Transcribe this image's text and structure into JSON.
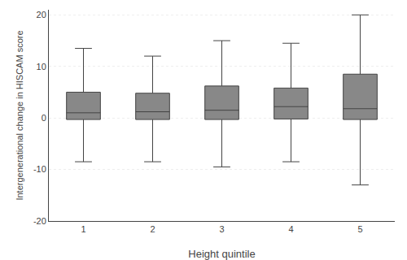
{
  "chart_data": {
    "type": "box",
    "xlabel": "Height quintile",
    "ylabel": "Intergenerational change in HISCAM score",
    "categories": [
      "1",
      "2",
      "3",
      "4",
      "5"
    ],
    "boxes": [
      {
        "whislo": -8.5,
        "q1": -0.3,
        "med": 1.0,
        "q3": 5.0,
        "whishi": 13.5
      },
      {
        "whislo": -8.5,
        "q1": -0.3,
        "med": 1.2,
        "q3": 4.8,
        "whishi": 12.0
      },
      {
        "whislo": -9.5,
        "q1": -0.3,
        "med": 1.5,
        "q3": 6.2,
        "whishi": 15.0
      },
      {
        "whislo": -8.5,
        "q1": -0.2,
        "med": 2.2,
        "q3": 5.8,
        "whishi": 14.5
      },
      {
        "whislo": -13.0,
        "q1": -0.3,
        "med": 1.8,
        "q3": 8.5,
        "whishi": 20.0
      }
    ],
    "color": "#888888",
    "ylim": [
      -20,
      21
    ],
    "yticks": [
      -20,
      -10,
      0,
      10,
      20
    ],
    "grid": true
  }
}
